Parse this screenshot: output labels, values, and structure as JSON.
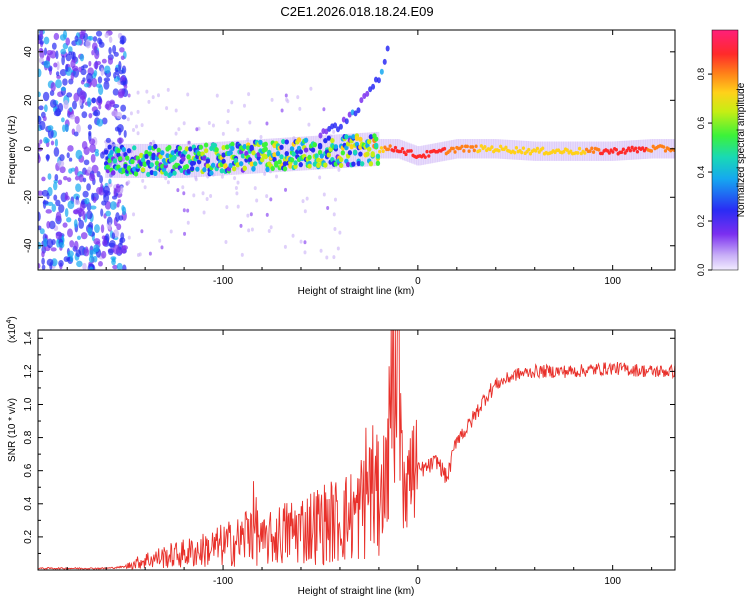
{
  "title": "C2E1.2026.018.18.24.E09",
  "chart_data": [
    {
      "type": "heatmap",
      "name": "spectrogram",
      "xlabel": "Height of straight line (km)",
      "ylabel": "Frequency (Hz)",
      "xlim": [
        -195,
        132
      ],
      "ylim": [
        -50,
        49
      ],
      "xticks": [
        -100,
        0,
        100
      ],
      "xtick_labels": [
        "-100",
        "0",
        "100"
      ],
      "yticks": [
        -40,
        -20,
        0,
        20,
        40
      ],
      "ytick_labels": [
        "-40",
        "-20",
        "0",
        "20",
        "40"
      ],
      "colorbar": {
        "label": "Normalized spectral amplitude",
        "range": [
          0.0,
          0.98
        ],
        "ticks": [
          0.0,
          0.2,
          0.4,
          0.6,
          0.8
        ],
        "tick_labels": [
          "0.0",
          "0.2",
          "0.4",
          "0.6",
          "0.8"
        ],
        "colors": [
          "#f2ecff",
          "#c9b0f7",
          "#7b2ff0",
          "#2a2cf4",
          "#15a8f0",
          "#19d9b5",
          "#3cf23a",
          "#c6ee14",
          "#ffd11a",
          "#ff8019",
          "#ff2a2a",
          "#ff1f7a"
        ]
      },
      "series": [
        {
          "name": "noise floor region",
          "x_range": [
            -195,
            -150
          ],
          "y_range": [
            -50,
            49
          ],
          "amplitude": 0.12
        },
        {
          "name": "carrier track",
          "x": [
            -160,
            -140,
            -120,
            -100,
            -80,
            -60,
            -40,
            -20,
            -10,
            0,
            20,
            40,
            60,
            80,
            100,
            120,
            132
          ],
          "y": [
            -5,
            -5,
            -5,
            -4,
            -3,
            -2,
            -1,
            0,
            0,
            -3,
            0,
            0,
            -1,
            -1,
            -1,
            0,
            0
          ],
          "amplitude": [
            0.45,
            0.5,
            0.5,
            0.55,
            0.6,
            0.6,
            0.55,
            0.7,
            0.95,
            0.9,
            0.85,
            0.7,
            0.7,
            0.7,
            0.95,
            0.85,
            0.85
          ]
        },
        {
          "name": "upward branch",
          "x": [
            -50,
            -40,
            -30,
            -20,
            -15
          ],
          "y": [
            5,
            10,
            18,
            30,
            42
          ],
          "amplitude": 0.3
        }
      ]
    },
    {
      "type": "line",
      "name": "snr",
      "xlabel": "Height of straight line (km)",
      "ylabel": "SNR (10 * v/v)",
      "y_multiplier_label": "(x10",
      "y_multiplier_exp": "4",
      "xlim": [
        -195,
        132
      ],
      "ylim": [
        0.0,
        1.45
      ],
      "xticks": [
        -100,
        0,
        100
      ],
      "xtick_labels": [
        "-100",
        "0",
        "100"
      ],
      "yticks": [
        0.2,
        0.4,
        0.6,
        0.8,
        1.0,
        1.2,
        1.4
      ],
      "ytick_labels": [
        "0.2",
        "0.4",
        "0.6",
        "0.8",
        "1.0",
        "1.2",
        "1.4"
      ],
      "color": "#e8302a",
      "series": [
        {
          "name": "SNR",
          "x": [
            -195,
            -180,
            -160,
            -150,
            -140,
            -130,
            -120,
            -110,
            -100,
            -90,
            -85,
            -80,
            -70,
            -60,
            -50,
            -40,
            -30,
            -25,
            -20,
            -15,
            -12,
            -10,
            -8,
            -5,
            0,
            5,
            10,
            15,
            20,
            25,
            30,
            35,
            40,
            50,
            60,
            80,
            100,
            120,
            132
          ],
          "y": [
            0.01,
            0.01,
            0.01,
            0.02,
            0.06,
            0.08,
            0.1,
            0.12,
            0.15,
            0.18,
            0.3,
            0.16,
            0.22,
            0.25,
            0.28,
            0.3,
            0.35,
            0.55,
            0.4,
            0.7,
            1.3,
            1.45,
            0.75,
            0.55,
            0.6,
            0.62,
            0.66,
            0.55,
            0.8,
            0.85,
            0.95,
            1.05,
            1.12,
            1.18,
            1.2,
            1.2,
            1.22,
            1.2,
            1.2
          ]
        }
      ]
    }
  ]
}
